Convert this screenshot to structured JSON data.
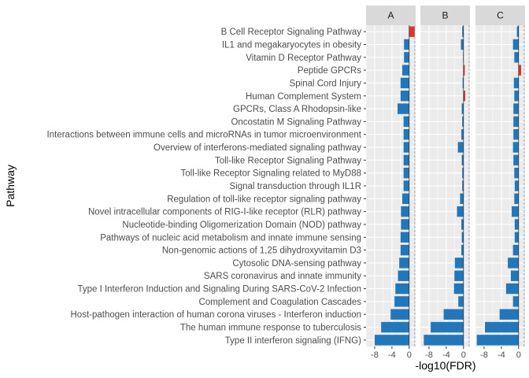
{
  "chart_data": {
    "type": "bar",
    "orientation": "horizontal",
    "xlabel": "-log10(FDR)",
    "ylabel": "Pathway",
    "xlim": [
      -10,
      1.5
    ],
    "x_ticks": [
      -8,
      -4,
      0
    ],
    "x_tick_labels": [
      "-8",
      "-4",
      "0"
    ],
    "grid": true,
    "reference_lines": [
      0,
      1.3
    ],
    "colors": {
      "negative": "#2277bb",
      "positive": "#dd3333",
      "panel": "#ebebeb",
      "strip": "#d9d9d9",
      "grid": "#ffffff"
    },
    "categories": [
      "B Cell Receptor Signaling Pathway",
      "IL1 and megakaryocytes in obesity",
      "Vitamin D Receptor Pathway",
      "Peptide GPCRs",
      "Spinal Cord Injury",
      "Human Complement System",
      "GPCRs, Class A Rhodopsin-like",
      "Oncostatin M Signaling Pathway",
      "Interactions between immune cells and microRNAs in tumor microenvironment",
      "Overview of interferons-mediated signaling pathway",
      "Toll-like Receptor Signaling Pathway",
      "Toll-like Receptor Signaling related to MyD88",
      "Signal transduction through IL1R",
      "Regulation of toll-like receptor signaling pathway",
      "Novel intracellular components of RIG-I-like receptor (RLR) pathway",
      "Nucleotide-binding Oligomerization Domain (NOD) pathway",
      "Pathways of nucleic acid metabolism and innate immune sensing",
      "Non-genomic actions of 1,25 dihydroxyvitamin D3",
      "Cytosolic DNA-sensing pathway",
      "SARS coronavirus and innate immunity",
      "Type I Interferon Induction and Signaling During SARS-CoV-2 Infection",
      "Complement and Coagulation Cascades",
      "Host-pathogen interaction of human corona viruses - Interferon induction",
      "The human immune response to tuberculosis",
      "Type II interferon signaling (IFNG)"
    ],
    "series": [
      {
        "name": "A",
        "values": [
          1.3,
          -1.2,
          -1.2,
          -1.6,
          -2.0,
          -2.0,
          -2.7,
          -1.3,
          -1.3,
          -1.3,
          -1.3,
          -1.3,
          -1.3,
          -1.6,
          -1.9,
          -1.9,
          -2.0,
          -2.0,
          -2.3,
          -2.6,
          -3.2,
          -3.4,
          -4.3,
          -6.5,
          -8.0
        ]
      },
      {
        "name": "B",
        "values": [
          -0.3,
          -0.6,
          -0.1,
          0.3,
          -0.2,
          0.4,
          -0.4,
          -0.3,
          -0.5,
          -1.3,
          -0.4,
          -0.3,
          -0.3,
          -0.8,
          -1.5,
          -0.5,
          -0.4,
          -0.5,
          -2.0,
          -2.1,
          -2.2,
          -1.2,
          -4.6,
          -7.6,
          -9.2
        ]
      },
      {
        "name": "C",
        "values": [
          -0.4,
          -1.3,
          -1.0,
          0.6,
          -1.1,
          -1.0,
          -1.2,
          -1.2,
          -1.2,
          -1.3,
          -1.2,
          -1.0,
          -0.9,
          -1.0,
          -1.6,
          -0.9,
          -0.9,
          -1.3,
          -2.5,
          -1.8,
          -2.9,
          -1.3,
          -4.4,
          -7.8,
          -9.7
        ]
      }
    ]
  }
}
